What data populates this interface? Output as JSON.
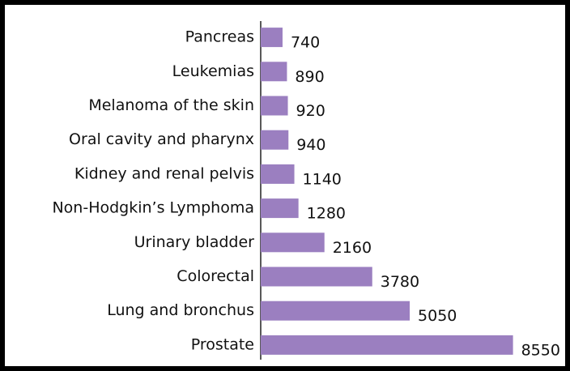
{
  "chart_data": {
    "type": "bar",
    "orientation": "horizontal",
    "categories": [
      "Pancreas",
      "Leukemias",
      "Melanoma of the skin",
      "Oral cavity and pharynx",
      "Kidney and renal pelvis",
      "Non-Hodgkin’s Lymphoma",
      "Urinary bladder",
      "Colorectal",
      "Lung and bronchus",
      "Prostate"
    ],
    "values": [
      740,
      890,
      920,
      940,
      1140,
      1280,
      2160,
      3780,
      5050,
      8550
    ],
    "color": "#9b7fc0",
    "xlim": [
      0,
      9000
    ]
  }
}
